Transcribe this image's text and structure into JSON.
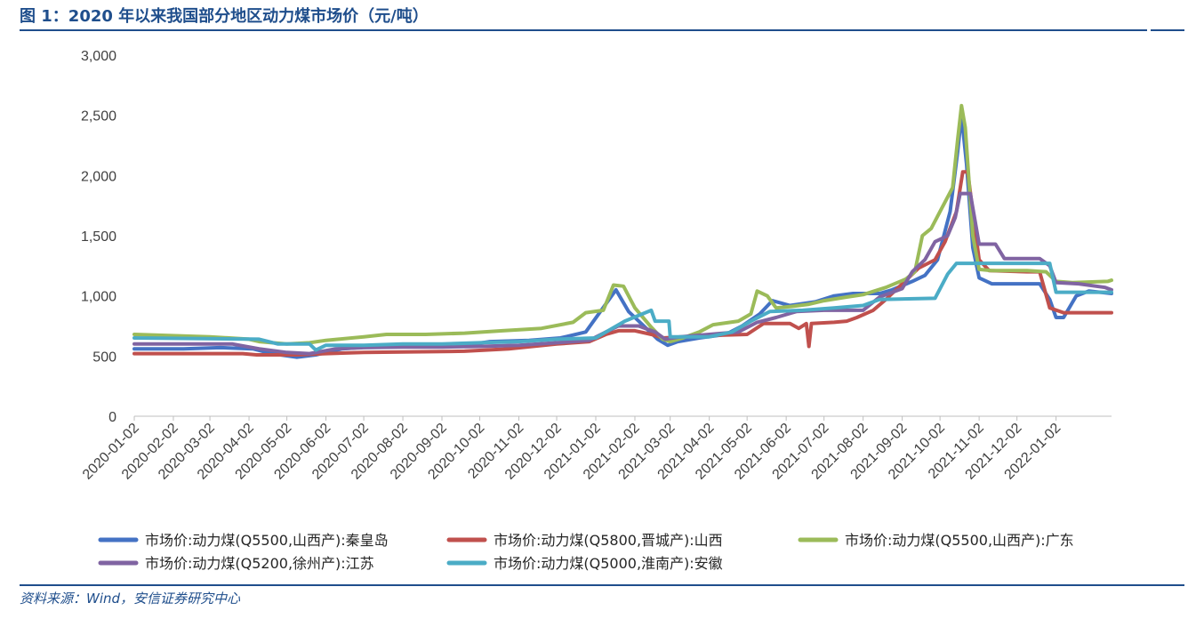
{
  "figure": {
    "title": "图 1：2020 年以来我国部分地区动力煤市场价（元/吨）",
    "source_note": "资料来源：Wind，安信证券研究中心"
  },
  "chart_data": {
    "type": "line",
    "ylim": [
      0,
      3000
    ],
    "yticks": [
      0,
      500,
      1000,
      1500,
      2000,
      2500,
      3000
    ],
    "ytick_labels": [
      "0",
      "500",
      "1,000",
      "1,500",
      "2,000",
      "2,500",
      "3,000"
    ],
    "xlim": [
      "2020-01-02",
      "2022-02-15"
    ],
    "xticks": [
      "2020-01-02",
      "2020-02-02",
      "2020-03-02",
      "2020-04-02",
      "2020-05-02",
      "2020-06-02",
      "2020-07-02",
      "2020-08-02",
      "2020-09-02",
      "2020-10-02",
      "2020-11-02",
      "2020-12-02",
      "2021-01-02",
      "2021-02-02",
      "2021-03-02",
      "2021-04-02",
      "2021-05-02",
      "2021-06-02",
      "2021-07-02",
      "2021-08-02",
      "2021-09-02",
      "2021-10-02",
      "2021-11-02",
      "2021-12-02",
      "2022-01-02"
    ],
    "grid": false,
    "legend_position": "bottom",
    "series": [
      {
        "name": "市场价:动力煤(Q5500,山西产):秦皇岛",
        "color": "#4472c4",
        "points": [
          [
            "2020-01-02",
            560
          ],
          [
            "2020-02-10",
            560
          ],
          [
            "2020-03-10",
            570
          ],
          [
            "2020-04-05",
            560
          ],
          [
            "2020-04-20",
            520
          ],
          [
            "2020-05-10",
            490
          ],
          [
            "2020-05-25",
            510
          ],
          [
            "2020-06-15",
            560
          ],
          [
            "2020-07-10",
            580
          ],
          [
            "2020-08-20",
            580
          ],
          [
            "2020-09-20",
            590
          ],
          [
            "2020-10-10",
            620
          ],
          [
            "2020-11-10",
            630
          ],
          [
            "2020-12-05",
            650
          ],
          [
            "2020-12-25",
            700
          ],
          [
            "2021-01-05",
            860
          ],
          [
            "2021-01-18",
            1050
          ],
          [
            "2021-01-28",
            870
          ],
          [
            "2021-02-08",
            760
          ],
          [
            "2021-02-20",
            640
          ],
          [
            "2021-02-28",
            590
          ],
          [
            "2021-03-08",
            620
          ],
          [
            "2021-03-25",
            650
          ],
          [
            "2021-04-15",
            680
          ],
          [
            "2021-04-28",
            750
          ],
          [
            "2021-05-12",
            850
          ],
          [
            "2021-05-22",
            960
          ],
          [
            "2021-06-05",
            920
          ],
          [
            "2021-06-25",
            950
          ],
          [
            "2021-07-10",
            1000
          ],
          [
            "2021-07-25",
            1020
          ],
          [
            "2021-08-15",
            1020
          ],
          [
            "2021-08-25",
            1050
          ],
          [
            "2021-09-10",
            1120
          ],
          [
            "2021-09-20",
            1170
          ],
          [
            "2021-09-30",
            1300
          ],
          [
            "2021-10-10",
            1700
          ],
          [
            "2021-10-16",
            2200
          ],
          [
            "2021-10-19",
            2500
          ],
          [
            "2021-10-23",
            2100
          ],
          [
            "2021-10-28",
            1400
          ],
          [
            "2021-11-02",
            1150
          ],
          [
            "2021-11-12",
            1100
          ],
          [
            "2021-12-02",
            1100
          ],
          [
            "2021-12-20",
            1100
          ],
          [
            "2021-12-28",
            970
          ],
          [
            "2022-01-02",
            820
          ],
          [
            "2022-01-08",
            820
          ],
          [
            "2022-01-18",
            1000
          ],
          [
            "2022-01-28",
            1040
          ],
          [
            "2022-02-15",
            1020
          ]
        ]
      },
      {
        "name": "市场价:动力煤(Q5800,晋城产):山西",
        "color": "#c0504d",
        "points": [
          [
            "2020-01-02",
            520
          ],
          [
            "2020-03-28",
            520
          ],
          [
            "2020-04-08",
            510
          ],
          [
            "2020-05-10",
            510
          ],
          [
            "2020-06-02",
            520
          ],
          [
            "2020-07-02",
            530
          ],
          [
            "2020-09-20",
            540
          ],
          [
            "2020-10-25",
            560
          ],
          [
            "2020-12-02",
            600
          ],
          [
            "2020-12-28",
            620
          ],
          [
            "2021-01-10",
            680
          ],
          [
            "2021-01-20",
            710
          ],
          [
            "2021-02-02",
            710
          ],
          [
            "2021-02-15",
            680
          ],
          [
            "2021-02-24",
            650
          ],
          [
            "2021-03-15",
            660
          ],
          [
            "2021-04-02",
            670
          ],
          [
            "2021-05-02",
            680
          ],
          [
            "2021-05-15",
            770
          ],
          [
            "2021-06-05",
            770
          ],
          [
            "2021-06-12",
            730
          ],
          [
            "2021-06-18",
            770
          ],
          [
            "2021-06-20",
            580
          ],
          [
            "2021-06-22",
            770
          ],
          [
            "2021-07-10",
            780
          ],
          [
            "2021-07-20",
            790
          ],
          [
            "2021-07-28",
            820
          ],
          [
            "2021-08-10",
            880
          ],
          [
            "2021-08-20",
            970
          ],
          [
            "2021-09-05",
            1130
          ],
          [
            "2021-09-15",
            1230
          ],
          [
            "2021-09-28",
            1300
          ],
          [
            "2021-10-06",
            1450
          ],
          [
            "2021-10-15",
            1700
          ],
          [
            "2021-10-20",
            2030
          ],
          [
            "2021-10-24",
            2030
          ],
          [
            "2021-10-28",
            1700
          ],
          [
            "2021-11-02",
            1300
          ],
          [
            "2021-11-10",
            1210
          ],
          [
            "2021-12-10",
            1200
          ],
          [
            "2021-12-20",
            1200
          ],
          [
            "2021-12-28",
            900
          ],
          [
            "2022-01-08",
            860
          ],
          [
            "2022-02-15",
            860
          ]
        ]
      },
      {
        "name": "市场价:动力煤(Q5500,山西产):广东",
        "color": "#9bbb59",
        "points": [
          [
            "2020-01-02",
            680
          ],
          [
            "2020-03-02",
            660
          ],
          [
            "2020-04-02",
            640
          ],
          [
            "2020-04-10",
            620
          ],
          [
            "2020-05-02",
            600
          ],
          [
            "2020-05-20",
            610
          ],
          [
            "2020-06-02",
            630
          ],
          [
            "2020-07-02",
            660
          ],
          [
            "2020-07-20",
            680
          ],
          [
            "2020-08-20",
            680
          ],
          [
            "2020-09-20",
            690
          ],
          [
            "2020-10-20",
            710
          ],
          [
            "2020-11-20",
            730
          ],
          [
            "2020-12-15",
            780
          ],
          [
            "2020-12-25",
            860
          ],
          [
            "2021-01-08",
            880
          ],
          [
            "2021-01-16",
            1090
          ],
          [
            "2021-01-24",
            1080
          ],
          [
            "2021-02-02",
            900
          ],
          [
            "2021-02-15",
            740
          ],
          [
            "2021-02-24",
            640
          ],
          [
            "2021-03-02",
            620
          ],
          [
            "2021-03-12",
            650
          ],
          [
            "2021-03-25",
            700
          ],
          [
            "2021-04-05",
            760
          ],
          [
            "2021-04-25",
            790
          ],
          [
            "2021-05-05",
            850
          ],
          [
            "2021-05-10",
            1040
          ],
          [
            "2021-05-18",
            1000
          ],
          [
            "2021-05-25",
            900
          ],
          [
            "2021-06-05",
            910
          ],
          [
            "2021-06-20",
            930
          ],
          [
            "2021-07-02",
            960
          ],
          [
            "2021-07-20",
            990
          ],
          [
            "2021-08-02",
            1010
          ],
          [
            "2021-08-20",
            1070
          ],
          [
            "2021-09-05",
            1140
          ],
          [
            "2021-09-12",
            1200
          ],
          [
            "2021-09-18",
            1500
          ],
          [
            "2021-09-25",
            1560
          ],
          [
            "2021-10-02",
            1700
          ],
          [
            "2021-10-12",
            1900
          ],
          [
            "2021-10-16",
            2300
          ],
          [
            "2021-10-19",
            2580
          ],
          [
            "2021-10-22",
            2400
          ],
          [
            "2021-10-28",
            1500
          ],
          [
            "2021-11-02",
            1220
          ],
          [
            "2021-11-12",
            1210
          ],
          [
            "2021-12-10",
            1210
          ],
          [
            "2021-12-25",
            1200
          ],
          [
            "2022-01-02",
            1120
          ],
          [
            "2022-01-15",
            1110
          ],
          [
            "2022-02-12",
            1120
          ],
          [
            "2022-02-15",
            1130
          ]
        ]
      },
      {
        "name": "市场价:动力煤(Q5200,徐州产):江苏",
        "color": "#8064a2",
        "points": [
          [
            "2020-01-02",
            600
          ],
          [
            "2020-03-20",
            600
          ],
          [
            "2020-04-10",
            560
          ],
          [
            "2020-05-02",
            530
          ],
          [
            "2020-05-20",
            520
          ],
          [
            "2020-06-10",
            560
          ],
          [
            "2020-07-02",
            570
          ],
          [
            "2020-08-02",
            575
          ],
          [
            "2020-09-02",
            575
          ],
          [
            "2020-10-02",
            580
          ],
          [
            "2020-11-02",
            590
          ],
          [
            "2020-12-02",
            610
          ],
          [
            "2020-12-28",
            630
          ],
          [
            "2021-01-10",
            700
          ],
          [
            "2021-01-20",
            750
          ],
          [
            "2021-02-05",
            750
          ],
          [
            "2021-02-18",
            700
          ],
          [
            "2021-02-26",
            640
          ],
          [
            "2021-03-10",
            660
          ],
          [
            "2021-04-02",
            680
          ],
          [
            "2021-04-25",
            700
          ],
          [
            "2021-05-10",
            780
          ],
          [
            "2021-05-25",
            820
          ],
          [
            "2021-06-10",
            870
          ],
          [
            "2021-07-02",
            880
          ],
          [
            "2021-08-02",
            880
          ],
          [
            "2021-08-15",
            990
          ],
          [
            "2021-09-02",
            1060
          ],
          [
            "2021-09-10",
            1200
          ],
          [
            "2021-09-20",
            1300
          ],
          [
            "2021-09-28",
            1450
          ],
          [
            "2021-10-08",
            1500
          ],
          [
            "2021-10-14",
            1650
          ],
          [
            "2021-10-18",
            1850
          ],
          [
            "2021-10-26",
            1850
          ],
          [
            "2021-11-02",
            1430
          ],
          [
            "2021-11-15",
            1430
          ],
          [
            "2021-11-22",
            1310
          ],
          [
            "2021-12-20",
            1310
          ],
          [
            "2021-12-28",
            1250
          ],
          [
            "2022-01-02",
            1110
          ],
          [
            "2022-01-20",
            1100
          ],
          [
            "2022-02-10",
            1070
          ],
          [
            "2022-02-15",
            1050
          ]
        ]
      },
      {
        "name": "市场价:动力煤(Q5000,淮南产):安徽",
        "color": "#4bacc6",
        "points": [
          [
            "2020-01-02",
            650
          ],
          [
            "2020-04-10",
            640
          ],
          [
            "2020-04-25",
            600
          ],
          [
            "2020-05-20",
            600
          ],
          [
            "2020-05-25",
            550
          ],
          [
            "2020-06-02",
            590
          ],
          [
            "2020-07-02",
            590
          ],
          [
            "2020-08-02",
            600
          ],
          [
            "2020-09-02",
            600
          ],
          [
            "2020-10-02",
            610
          ],
          [
            "2020-11-02",
            620
          ],
          [
            "2020-12-02",
            640
          ],
          [
            "2021-01-02",
            650
          ],
          [
            "2021-01-10",
            700
          ],
          [
            "2021-01-25",
            790
          ],
          [
            "2021-02-15",
            880
          ],
          [
            "2021-02-18",
            790
          ],
          [
            "2021-03-01",
            790
          ],
          [
            "2021-03-02",
            660
          ],
          [
            "2021-04-02",
            660
          ],
          [
            "2021-04-20",
            700
          ],
          [
            "2021-05-05",
            790
          ],
          [
            "2021-05-20",
            870
          ],
          [
            "2021-06-15",
            880
          ],
          [
            "2021-07-10",
            900
          ],
          [
            "2021-08-02",
            920
          ],
          [
            "2021-08-15",
            970
          ],
          [
            "2021-09-28",
            980
          ],
          [
            "2021-10-08",
            1180
          ],
          [
            "2021-10-15",
            1270
          ],
          [
            "2021-11-02",
            1270
          ],
          [
            "2021-12-28",
            1270
          ],
          [
            "2022-01-02",
            1030
          ],
          [
            "2022-02-15",
            1030
          ]
        ]
      }
    ]
  }
}
